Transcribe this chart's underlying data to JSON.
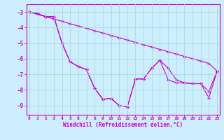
{
  "xlabel": "Windchill (Refroidissement éolien,°C)",
  "x": [
    0,
    1,
    2,
    3,
    4,
    5,
    6,
    7,
    8,
    9,
    10,
    11,
    12,
    13,
    14,
    15,
    16,
    17,
    18,
    19,
    20,
    21,
    22,
    23
  ],
  "line_straight": [
    -3.0,
    -3.15,
    -3.3,
    -3.45,
    -3.6,
    -3.75,
    -3.9,
    -4.05,
    -4.2,
    -4.35,
    -4.5,
    -4.65,
    -4.8,
    -4.95,
    -5.1,
    -5.25,
    -5.4,
    -5.55,
    -5.7,
    -5.85,
    -6.0,
    -6.15,
    -6.3,
    -6.8
  ],
  "line_jagged1": [
    -3.0,
    -3.1,
    -3.3,
    -3.3,
    -5.0,
    -6.2,
    -6.5,
    -6.7,
    -7.9,
    -8.6,
    -8.55,
    -9.0,
    -9.1,
    -7.3,
    -7.3,
    -6.6,
    -6.1,
    -7.35,
    -7.55,
    -7.55,
    -7.6,
    -7.6,
    -8.5,
    -6.8
  ],
  "line_jagged2": [
    -3.0,
    -3.1,
    -3.3,
    -3.3,
    -5.0,
    -6.2,
    -6.5,
    -6.7,
    -7.9,
    -8.6,
    -8.55,
    -9.0,
    -9.1,
    -7.3,
    -7.3,
    -6.6,
    -6.1,
    -6.6,
    -7.35,
    -7.55,
    -7.6,
    -7.6,
    -8.1,
    -6.8
  ],
  "bg_color": "#cceeff",
  "grid_color": "#aadddd",
  "line_color": "#cc00cc",
  "ylim": [
    -9.6,
    -2.5
  ],
  "xlim": [
    -0.3,
    23.3
  ],
  "yticks": [
    -3,
    -4,
    -5,
    -6,
    -7,
    -8,
    -9
  ],
  "xticks": [
    0,
    1,
    2,
    3,
    4,
    5,
    6,
    7,
    8,
    9,
    10,
    11,
    12,
    13,
    14,
    15,
    16,
    17,
    18,
    19,
    20,
    21,
    22,
    23
  ]
}
